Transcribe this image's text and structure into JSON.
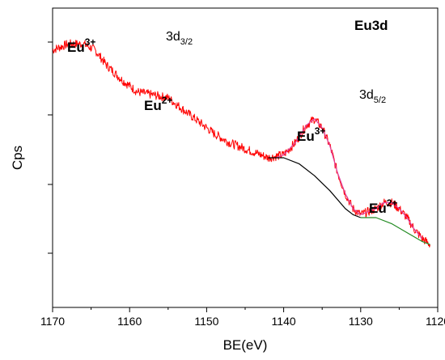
{
  "chart_data": {
    "type": "line",
    "xlabel": "BE(eV)",
    "ylabel": "Cps",
    "x_range": [
      1170,
      1120
    ],
    "x_ticks": [
      "1170",
      "1160",
      "1150",
      "1140",
      "1130",
      "1120"
    ],
    "y_ticks_labeled": false,
    "grid": false,
    "annotations": {
      "eu3_left": {
        "base": "Eu",
        "sup": "3+"
      },
      "eu2_left": {
        "base": "Eu",
        "sup": "2+"
      },
      "d32": {
        "base": "3d",
        "sub": "3/2"
      },
      "eu3d": "Eu3d",
      "d52": {
        "base": "3d",
        "sub": "5/2"
      },
      "eu3_right": {
        "base": "Eu",
        "sup": "3+"
      },
      "eu2_right": {
        "base": "Eu",
        "sup": "2+"
      }
    },
    "series": [
      {
        "color": "#ff0000",
        "style": "noisy raw spectrum",
        "points": [
          [
            1170,
            0.86
          ],
          [
            1168,
            0.88
          ],
          [
            1166,
            0.88
          ],
          [
            1164.5,
            0.86
          ],
          [
            1163,
            0.81
          ],
          [
            1161,
            0.76
          ],
          [
            1159,
            0.72
          ],
          [
            1157,
            0.71
          ],
          [
            1155,
            0.7
          ],
          [
            1153,
            0.66
          ],
          [
            1151,
            0.62
          ],
          [
            1149,
            0.58
          ],
          [
            1147,
            0.55
          ],
          [
            1145,
            0.53
          ],
          [
            1143,
            0.51
          ],
          [
            1142,
            0.5
          ],
          [
            1140,
            0.51
          ],
          [
            1138.5,
            0.55
          ],
          [
            1137,
            0.61
          ],
          [
            1136,
            0.63
          ],
          [
            1135,
            0.6
          ],
          [
            1134,
            0.54
          ],
          [
            1133,
            0.45
          ],
          [
            1132,
            0.38
          ],
          [
            1131,
            0.33
          ],
          [
            1130,
            0.31
          ],
          [
            1129,
            0.32
          ],
          [
            1128,
            0.33
          ],
          [
            1127,
            0.35
          ],
          [
            1126,
            0.35
          ],
          [
            1125,
            0.33
          ],
          [
            1124,
            0.3
          ],
          [
            1123,
            0.26
          ],
          [
            1122,
            0.23
          ],
          [
            1121,
            0.21
          ]
        ]
      },
      {
        "color": "#e0409f",
        "style": "fitted envelope",
        "points": [
          [
            1141,
            0.5
          ],
          [
            1140,
            0.51
          ],
          [
            1138.5,
            0.55
          ],
          [
            1137,
            0.61
          ],
          [
            1136,
            0.63
          ],
          [
            1135,
            0.6
          ],
          [
            1134,
            0.54
          ],
          [
            1133,
            0.45
          ],
          [
            1132,
            0.38
          ],
          [
            1131,
            0.33
          ],
          [
            1130,
            0.31
          ],
          [
            1129,
            0.32
          ],
          [
            1128,
            0.33
          ],
          [
            1127,
            0.35
          ],
          [
            1126,
            0.35
          ],
          [
            1125,
            0.33
          ],
          [
            1124,
            0.3
          ],
          [
            1123,
            0.26
          ],
          [
            1122,
            0.23
          ]
        ]
      },
      {
        "color": "#000000",
        "style": "background 3d3/2",
        "points": [
          [
            1142,
            0.5
          ],
          [
            1140,
            0.5
          ],
          [
            1138,
            0.48
          ],
          [
            1136,
            0.44
          ],
          [
            1134,
            0.39
          ],
          [
            1132,
            0.33
          ],
          [
            1131,
            0.31
          ],
          [
            1130,
            0.3
          ]
        ]
      },
      {
        "color": "#228b22",
        "style": "background 3d5/2",
        "points": [
          [
            1130,
            0.3
          ],
          [
            1128,
            0.3
          ],
          [
            1126,
            0.28
          ],
          [
            1124,
            0.25
          ],
          [
            1122,
            0.22
          ],
          [
            1121,
            0.21
          ]
        ]
      }
    ]
  }
}
